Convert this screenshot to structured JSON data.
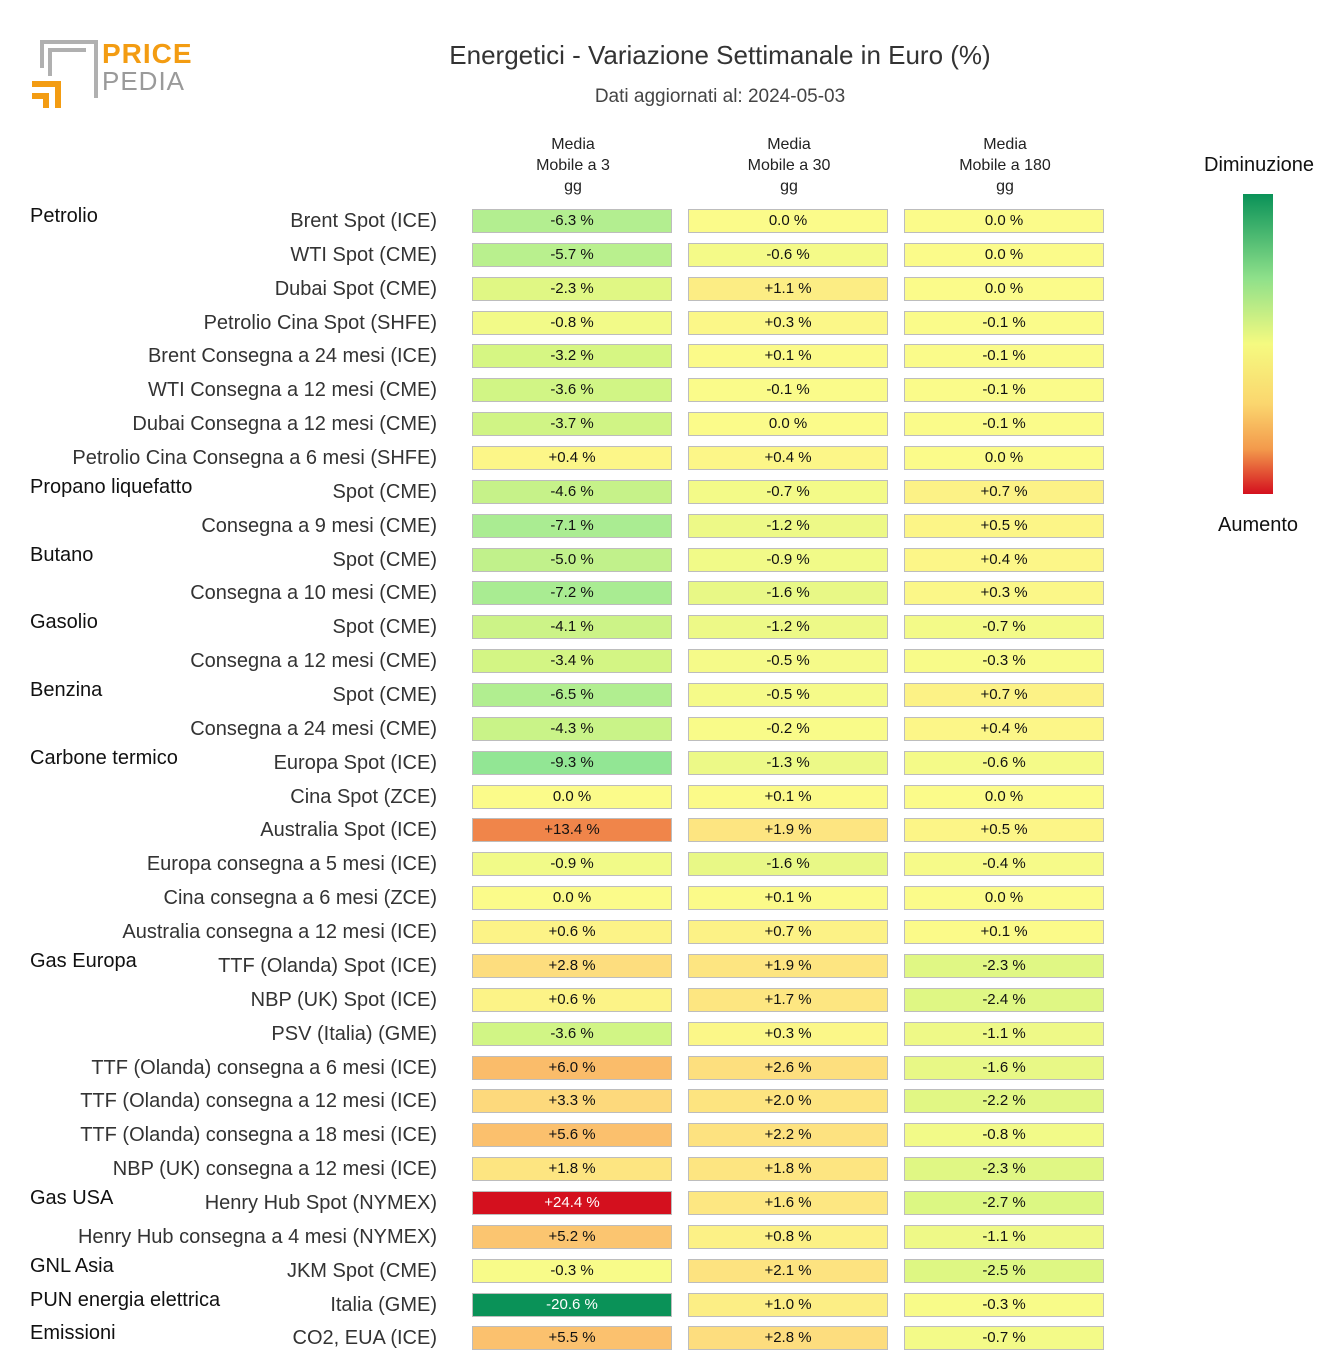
{
  "logo": {
    "line1": "PRICE",
    "line2": "PEDIA"
  },
  "title": "Energetici - Variazione Settimanale in Euro (%)",
  "subtitle": "Dati aggiornati al: 2024-05-03",
  "legend": {
    "top": "Diminuzione",
    "bottom": "Aumento"
  },
  "chart_data": {
    "type": "table",
    "title": "Energetici - Variazione Settimanale in Euro (%)",
    "columns": [
      {
        "l1": "Media",
        "l2": "Mobile a 3",
        "l3": "gg"
      },
      {
        "l1": "Media",
        "l2": "Mobile a 30",
        "l3": "gg"
      },
      {
        "l1": "Media",
        "l2": "Mobile a 180",
        "l3": "gg"
      }
    ],
    "rows": [
      {
        "group": "Petrolio",
        "label": "Brent Spot (ICE)",
        "values": [
          -6.3,
          0.0,
          0.0
        ]
      },
      {
        "label": "WTI Spot (CME)",
        "values": [
          -5.7,
          -0.6,
          0.0
        ]
      },
      {
        "label": "Dubai Spot (CME)",
        "values": [
          -2.3,
          1.1,
          0.0
        ]
      },
      {
        "label": "Petrolio Cina Spot (SHFE)",
        "values": [
          -0.8,
          0.3,
          -0.1
        ]
      },
      {
        "label": "Brent Consegna a 24 mesi (ICE)",
        "values": [
          -3.2,
          0.1,
          -0.1
        ]
      },
      {
        "label": "WTI Consegna a 12 mesi (CME)",
        "values": [
          -3.6,
          -0.1,
          -0.1
        ]
      },
      {
        "label": "Dubai Consegna a 12 mesi (CME)",
        "values": [
          -3.7,
          0.0,
          -0.1
        ]
      },
      {
        "label": "Petrolio Cina Consegna a 6 mesi (SHFE)",
        "values": [
          0.4,
          0.4,
          0.0
        ]
      },
      {
        "group": "Propano liquefatto",
        "label": "Spot (CME)",
        "values": [
          -4.6,
          -0.7,
          0.7
        ]
      },
      {
        "label": "Consegna a 9 mesi (CME)",
        "values": [
          -7.1,
          -1.2,
          0.5
        ]
      },
      {
        "group": "Butano",
        "label": "Spot (CME)",
        "values": [
          -5.0,
          -0.9,
          0.4
        ]
      },
      {
        "label": "Consegna a 10 mesi (CME)",
        "values": [
          -7.2,
          -1.6,
          0.3
        ]
      },
      {
        "group": "Gasolio",
        "label": "Spot (CME)",
        "values": [
          -4.1,
          -1.2,
          -0.7
        ]
      },
      {
        "label": "Consegna a 12 mesi (CME)",
        "values": [
          -3.4,
          -0.5,
          -0.3
        ]
      },
      {
        "group": "Benzina",
        "label": "Spot (CME)",
        "values": [
          -6.5,
          -0.5,
          0.7
        ]
      },
      {
        "label": "Consegna a 24 mesi (CME)",
        "values": [
          -4.3,
          -0.2,
          0.4
        ]
      },
      {
        "group": "Carbone termico",
        "label": "Europa Spot (ICE)",
        "values": [
          -9.3,
          -1.3,
          -0.6
        ]
      },
      {
        "label": "Cina Spot (ZCE)",
        "values": [
          0.0,
          0.1,
          0.0
        ]
      },
      {
        "label": "Australia Spot (ICE)",
        "values": [
          13.4,
          1.9,
          0.5
        ]
      },
      {
        "label": "Europa consegna a 5 mesi (ICE)",
        "values": [
          -0.9,
          -1.6,
          -0.4
        ]
      },
      {
        "label": "Cina consegna a 6 mesi (ZCE)",
        "values": [
          0.0,
          0.1,
          0.0
        ]
      },
      {
        "label": "Australia consegna a 12 mesi (ICE)",
        "values": [
          0.6,
          0.7,
          0.1
        ]
      },
      {
        "group": "Gas Europa",
        "label": "TTF (Olanda) Spot (ICE)",
        "values": [
          2.8,
          1.9,
          -2.3
        ]
      },
      {
        "label": "NBP (UK) Spot (ICE)",
        "values": [
          0.6,
          1.7,
          -2.4
        ]
      },
      {
        "label": "PSV (Italia) (GME)",
        "values": [
          -3.6,
          0.3,
          -1.1
        ]
      },
      {
        "label": "TTF (Olanda) consegna a 6 mesi (ICE)",
        "values": [
          6.0,
          2.6,
          -1.6
        ]
      },
      {
        "label": "TTF (Olanda) consegna a 12 mesi (ICE)",
        "values": [
          3.3,
          2.0,
          -2.2
        ]
      },
      {
        "label": "TTF (Olanda) consegna a 18 mesi (ICE)",
        "values": [
          5.6,
          2.2,
          -0.8
        ]
      },
      {
        "label": "NBP (UK) consegna a 12 mesi (ICE)",
        "values": [
          1.8,
          1.8,
          -2.3
        ]
      },
      {
        "group": "Gas USA",
        "label": "Henry Hub Spot (NYMEX)",
        "values": [
          24.4,
          1.6,
          -2.7
        ]
      },
      {
        "label": "Henry Hub consegna a 4 mesi (NYMEX)",
        "values": [
          5.2,
          0.8,
          -1.1
        ]
      },
      {
        "group": "GNL Asia",
        "label": "JKM Spot (CME)",
        "values": [
          -0.3,
          2.1,
          -2.5
        ]
      },
      {
        "group": "PUN energia elettrica",
        "label": "Italia (GME)",
        "values": [
          -20.6,
          1.0,
          -0.3
        ]
      },
      {
        "group": "Emissioni",
        "label": "CO2, EUA (ICE)",
        "values": [
          5.5,
          2.8,
          -0.7
        ]
      }
    ]
  }
}
